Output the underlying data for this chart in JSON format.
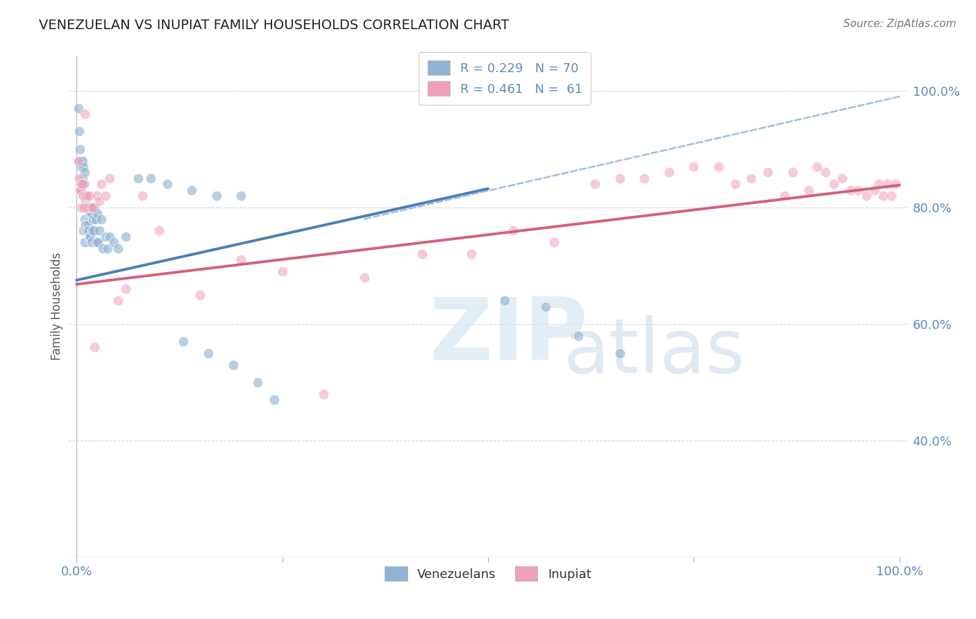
{
  "title": "VENEZUELAN VS INUPIAT FAMILY HOUSEHOLDS CORRELATION CHART",
  "source": "Source: ZipAtlas.com",
  "ylabel": "Family Households",
  "legend_label1": "Venezuelans",
  "legend_label2": "Inupiat",
  "r_blue": 0.229,
  "n_blue": 70,
  "r_pink": 0.461,
  "n_pink": 61,
  "bg_color": "#ffffff",
  "blue_color": "#92b4d4",
  "pink_color": "#f0a0b8",
  "blue_line_color": "#4a7fb5",
  "pink_line_color": "#d4607a",
  "dashed_line_color": "#92b4d4",
  "grid_color": "#cccccc",
  "title_color": "#222222",
  "source_color": "#777777",
  "axis_label_color": "#5b8db8",
  "ytick_vals": [
    0.4,
    0.6,
    0.8,
    1.0
  ],
  "xlim": [
    0.0,
    1.0
  ],
  "ylim": [
    0.2,
    1.06
  ],
  "blue_line_x0": 0.0,
  "blue_line_y0": 0.675,
  "blue_line_x1": 0.5,
  "blue_line_y1": 0.832,
  "pink_line_x0": 0.0,
  "pink_line_y0": 0.668,
  "pink_line_x1": 1.0,
  "pink_line_y1": 0.838,
  "dashed_line_x0": 0.35,
  "dashed_line_y0": 0.78,
  "dashed_line_x1": 1.0,
  "dashed_line_y1": 0.99,
  "blue_scatter": {
    "x": [
      0.002,
      0.003,
      0.003,
      0.004,
      0.004,
      0.005,
      0.005,
      0.006,
      0.006,
      0.007,
      0.007,
      0.007,
      0.008,
      0.008,
      0.008,
      0.008,
      0.009,
      0.009,
      0.01,
      0.01,
      0.01,
      0.01,
      0.011,
      0.011,
      0.012,
      0.012,
      0.013,
      0.013,
      0.014,
      0.014,
      0.015,
      0.015,
      0.016,
      0.016,
      0.017,
      0.017,
      0.018,
      0.018,
      0.019,
      0.02,
      0.021,
      0.022,
      0.023,
      0.024,
      0.025,
      0.026,
      0.028,
      0.03,
      0.032,
      0.035,
      0.038,
      0.04,
      0.045,
      0.05,
      0.06,
      0.075,
      0.09,
      0.11,
      0.14,
      0.17,
      0.2,
      0.13,
      0.16,
      0.19,
      0.22,
      0.24,
      0.52,
      0.57,
      0.61,
      0.66
    ],
    "y": [
      0.97,
      0.93,
      0.88,
      0.9,
      0.84,
      0.87,
      0.84,
      0.88,
      0.83,
      0.88,
      0.85,
      0.82,
      0.87,
      0.84,
      0.8,
      0.76,
      0.84,
      0.8,
      0.86,
      0.82,
      0.78,
      0.74,
      0.81,
      0.77,
      0.8,
      0.76,
      0.8,
      0.76,
      0.8,
      0.77,
      0.8,
      0.76,
      0.79,
      0.75,
      0.79,
      0.75,
      0.79,
      0.74,
      0.76,
      0.78,
      0.76,
      0.8,
      0.78,
      0.74,
      0.79,
      0.74,
      0.76,
      0.78,
      0.73,
      0.75,
      0.73,
      0.75,
      0.74,
      0.73,
      0.75,
      0.85,
      0.85,
      0.84,
      0.83,
      0.82,
      0.82,
      0.57,
      0.55,
      0.53,
      0.5,
      0.47,
      0.64,
      0.63,
      0.58,
      0.55
    ]
  },
  "pink_scatter": {
    "x": [
      0.002,
      0.003,
      0.004,
      0.005,
      0.006,
      0.006,
      0.007,
      0.008,
      0.009,
      0.01,
      0.011,
      0.012,
      0.013,
      0.015,
      0.016,
      0.018,
      0.02,
      0.022,
      0.025,
      0.028,
      0.03,
      0.035,
      0.04,
      0.05,
      0.06,
      0.08,
      0.1,
      0.15,
      0.2,
      0.25,
      0.3,
      0.35,
      0.42,
      0.48,
      0.53,
      0.58,
      0.63,
      0.66,
      0.69,
      0.72,
      0.75,
      0.78,
      0.8,
      0.82,
      0.84,
      0.86,
      0.87,
      0.89,
      0.9,
      0.91,
      0.92,
      0.93,
      0.94,
      0.95,
      0.96,
      0.97,
      0.975,
      0.98,
      0.985,
      0.99,
      0.995
    ],
    "y": [
      0.88,
      0.85,
      0.83,
      0.83,
      0.84,
      0.8,
      0.84,
      0.82,
      0.8,
      0.96,
      0.82,
      0.8,
      0.82,
      0.8,
      0.82,
      0.8,
      0.8,
      0.56,
      0.82,
      0.81,
      0.84,
      0.82,
      0.85,
      0.64,
      0.66,
      0.82,
      0.76,
      0.65,
      0.71,
      0.69,
      0.48,
      0.68,
      0.72,
      0.72,
      0.76,
      0.74,
      0.84,
      0.85,
      0.85,
      0.86,
      0.87,
      0.87,
      0.84,
      0.85,
      0.86,
      0.82,
      0.86,
      0.83,
      0.87,
      0.86,
      0.84,
      0.85,
      0.83,
      0.83,
      0.82,
      0.83,
      0.84,
      0.82,
      0.84,
      0.82,
      0.84
    ]
  }
}
